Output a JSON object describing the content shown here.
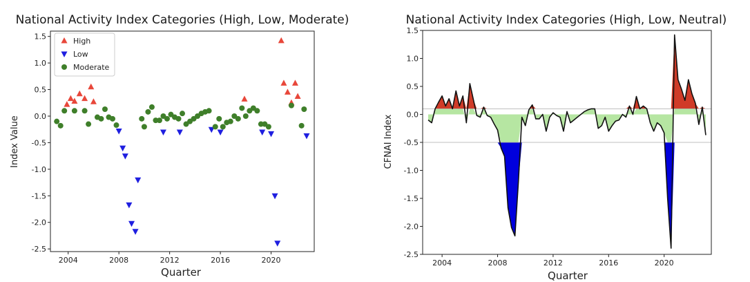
{
  "chart_data": [
    {
      "type": "scatter",
      "title": "National Activity Index Categories (High, Low, Moderate)",
      "xlabel": "Quarter",
      "ylabel": "Index Value",
      "xlim": [
        2002.6,
        2023.4
      ],
      "ylim": [
        -2.55,
        1.6
      ],
      "xticks": [
        "2004",
        "2008",
        "2012",
        "2016",
        "2020"
      ],
      "yticks": [
        "1.5",
        "1.0",
        "0.5",
        "0.0",
        "-0.5",
        "-1.0",
        "-1.5",
        "-2.0",
        "-2.5"
      ],
      "legend": {
        "position": "top-left",
        "entries": [
          "High",
          "Low",
          "Moderate"
        ]
      },
      "colors": {
        "High": "#e8473a",
        "Low": "#1f1fe0",
        "Moderate": "#3f7f2a"
      },
      "series": [
        {
          "name": "High",
          "marker": "triangle-up",
          "x": [
            2003.9,
            2004.2,
            2004.5,
            2004.9,
            2005.3,
            2005.8,
            2006.0,
            2017.9,
            2020.8,
            2021.0,
            2021.3,
            2021.6,
            2021.9,
            2022.1
          ],
          "y": [
            0.22,
            0.33,
            0.28,
            0.42,
            0.33,
            0.55,
            0.27,
            0.32,
            1.42,
            0.62,
            0.45,
            0.25,
            0.62,
            0.37
          ]
        },
        {
          "name": "Low",
          "marker": "triangle-down",
          "x": [
            2008.0,
            2008.3,
            2008.5,
            2008.8,
            2009.0,
            2009.3,
            2009.5,
            2011.5,
            2012.8,
            2015.3,
            2016.0,
            2019.3,
            2020.0,
            2020.3,
            2020.5,
            2022.8
          ],
          "y": [
            -0.28,
            -0.6,
            -0.75,
            -1.67,
            -2.02,
            -2.17,
            -1.2,
            -0.3,
            -0.3,
            -0.25,
            -0.3,
            -0.3,
            -0.33,
            -1.5,
            -2.39,
            -0.37
          ]
        },
        {
          "name": "Moderate",
          "marker": "circle",
          "x": [
            2003.1,
            2003.4,
            2003.7,
            2004.5,
            2005.3,
            2005.6,
            2006.3,
            2006.6,
            2006.9,
            2007.2,
            2007.5,
            2007.8,
            2009.8,
            2010.0,
            2010.3,
            2010.6,
            2010.9,
            2011.2,
            2011.5,
            2011.8,
            2012.1,
            2012.4,
            2012.7,
            2013.0,
            2013.3,
            2013.6,
            2013.9,
            2014.2,
            2014.5,
            2014.8,
            2015.1,
            2015.6,
            2015.9,
            2016.2,
            2016.5,
            2016.8,
            2017.1,
            2017.4,
            2017.7,
            2018.0,
            2018.3,
            2018.6,
            2018.9,
            2019.2,
            2019.5,
            2019.8,
            2021.6,
            2022.4,
            2022.6
          ],
          "y": [
            -0.1,
            -0.18,
            0.1,
            0.1,
            0.1,
            -0.15,
            -0.02,
            -0.05,
            0.13,
            -0.02,
            -0.05,
            -0.17,
            -0.05,
            -0.2,
            0.08,
            0.17,
            -0.08,
            -0.08,
            0.0,
            -0.05,
            0.03,
            -0.02,
            -0.05,
            0.05,
            -0.15,
            -0.1,
            -0.05,
            0.0,
            0.05,
            0.08,
            0.1,
            -0.2,
            -0.05,
            -0.2,
            -0.12,
            -0.1,
            0.0,
            -0.05,
            0.15,
            0.0,
            0.1,
            0.15,
            0.1,
            -0.15,
            -0.15,
            -0.2,
            0.2,
            -0.18,
            0.13
          ]
        }
      ]
    },
    {
      "type": "area",
      "title": "National Activity Index Categories (High, Low, Neutral)",
      "xlabel": "Quarter",
      "ylabel": "CFNAI Index",
      "xlim": [
        2002.6,
        2023.4
      ],
      "ylim": [
        -2.5,
        1.5
      ],
      "xticks": [
        "2004",
        "2008",
        "2012",
        "2016",
        "2020"
      ],
      "yticks": [
        "1.5",
        "1.0",
        "0.5",
        "0.0",
        "-0.5",
        "-1.0",
        "-1.5",
        "-2.0",
        "-2.5"
      ],
      "thresholds": [
        0.1,
        -0.5
      ],
      "colors": {
        "High": "#d03b28",
        "Low": "#0000dd",
        "Neutral": "#b6e6a2",
        "line": "#111111"
      },
      "series": [
        {
          "name": "",
          "x": [
            2003.0,
            2003.25,
            2003.5,
            2003.75,
            2004.0,
            2004.25,
            2004.5,
            2004.75,
            2005.0,
            2005.25,
            2005.5,
            2005.75,
            2006.0,
            2006.25,
            2006.5,
            2006.75,
            2007.0,
            2007.25,
            2007.5,
            2007.75,
            2008.0,
            2008.25,
            2008.5,
            2008.75,
            2009.0,
            2009.25,
            2009.5,
            2009.75,
            2010.0,
            2010.25,
            2010.5,
            2010.75,
            2011.0,
            2011.25,
            2011.5,
            2011.75,
            2012.0,
            2012.25,
            2012.5,
            2012.75,
            2013.0,
            2013.25,
            2013.5,
            2013.75,
            2014.0,
            2014.25,
            2014.5,
            2014.75,
            2015.0,
            2015.25,
            2015.5,
            2015.75,
            2016.0,
            2016.25,
            2016.5,
            2016.75,
            2017.0,
            2017.25,
            2017.5,
            2017.75,
            2018.0,
            2018.25,
            2018.5,
            2018.75,
            2019.0,
            2019.25,
            2019.5,
            2019.75,
            2020.0,
            2020.25,
            2020.5,
            2020.75,
            2021.0,
            2021.25,
            2021.5,
            2021.75,
            2022.0,
            2022.25,
            2022.5,
            2022.75,
            2023.0
          ],
          "values": [
            -0.1,
            -0.15,
            0.1,
            0.22,
            0.33,
            0.15,
            0.28,
            0.1,
            0.42,
            0.15,
            0.33,
            -0.15,
            0.55,
            0.27,
            -0.02,
            -0.05,
            0.13,
            -0.02,
            -0.05,
            -0.17,
            -0.28,
            -0.6,
            -0.75,
            -1.67,
            -2.02,
            -2.17,
            -1.2,
            -0.05,
            -0.2,
            0.08,
            0.17,
            -0.08,
            -0.08,
            0.0,
            -0.3,
            -0.05,
            0.03,
            -0.02,
            -0.05,
            -0.3,
            0.05,
            -0.15,
            -0.1,
            -0.05,
            0.0,
            0.05,
            0.08,
            0.1,
            0.1,
            -0.25,
            -0.2,
            -0.05,
            -0.3,
            -0.2,
            -0.12,
            -0.1,
            0.0,
            -0.05,
            0.15,
            0.0,
            0.32,
            0.1,
            0.15,
            0.1,
            -0.15,
            -0.3,
            -0.15,
            -0.2,
            -0.33,
            -1.5,
            -2.39,
            1.42,
            0.62,
            0.45,
            0.25,
            0.62,
            0.37,
            0.2,
            -0.18,
            0.13,
            -0.37
          ]
        }
      ]
    }
  ]
}
